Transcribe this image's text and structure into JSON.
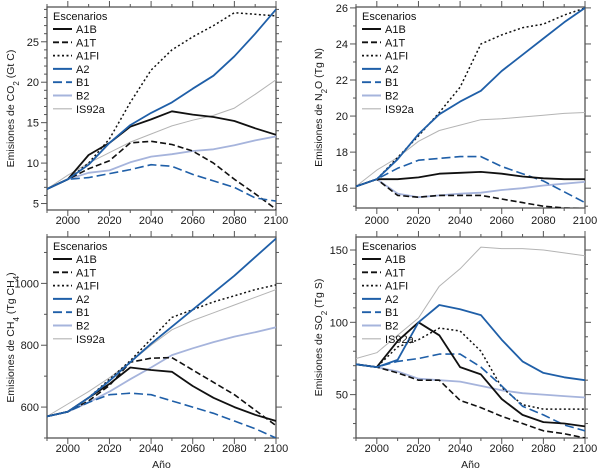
{
  "colors": {
    "A1B": "#111111",
    "A1T": "#111111",
    "A1FI": "#111111",
    "A2": "#1f5fa8",
    "B1": "#1f5fa8",
    "B2": "#a6b4dc",
    "IS92a": "#b4b4b4",
    "axis": "#555555"
  },
  "chart_data": [
    {
      "type": "line",
      "id": "co2",
      "title": "",
      "xlabel": "",
      "ylabel_parts": [
        "Emisiones de CO",
        "2",
        " (Gt C)"
      ],
      "xlim": [
        1990,
        2100
      ],
      "ylim": [
        4.2,
        29.3
      ],
      "xticks": [
        2000,
        2020,
        2040,
        2060,
        2080,
        2100
      ],
      "yticks": [
        5,
        10,
        15,
        20,
        25
      ],
      "legend": {
        "title": "Escenarios",
        "placement": "top-left"
      },
      "grid": false,
      "x": [
        1990,
        2000,
        2010,
        2020,
        2030,
        2040,
        2050,
        2060,
        2070,
        2080,
        2090,
        2100
      ],
      "series": [
        {
          "name": "A1B",
          "style": "solid",
          "values": [
            6.8,
            8.0,
            11.0,
            12.5,
            14.5,
            15.4,
            16.4,
            16.0,
            15.7,
            15.2,
            14.3,
            13.5
          ]
        },
        {
          "name": "A1T",
          "style": "dashed",
          "values": [
            6.8,
            8.0,
            9.3,
            10.3,
            12.5,
            12.7,
            12.3,
            11.5,
            10.0,
            8.0,
            6.2,
            4.3
          ]
        },
        {
          "name": "A1FI",
          "style": "dotted",
          "values": [
            6.8,
            8.0,
            10.0,
            13.0,
            17.5,
            21.5,
            24.0,
            25.6,
            27.0,
            28.6,
            28.4,
            28.2
          ]
        },
        {
          "name": "A2",
          "style": "solid",
          "values": [
            6.8,
            8.0,
            9.8,
            12.5,
            14.7,
            16.2,
            17.5,
            19.2,
            20.8,
            23.2,
            26.0,
            29.0
          ]
        },
        {
          "name": "B1",
          "style": "longdash",
          "values": [
            6.8,
            8.0,
            8.2,
            8.7,
            9.2,
            9.8,
            9.6,
            8.6,
            7.8,
            7.0,
            5.7,
            5.3
          ]
        },
        {
          "name": "B2",
          "style": "solid",
          "values": [
            6.8,
            8.0,
            8.8,
            9.1,
            10.1,
            10.8,
            11.1,
            11.5,
            11.7,
            12.2,
            12.8,
            13.3
          ]
        },
        {
          "name": "IS92a",
          "style": "thin",
          "values": [
            6.8,
            8.5,
            10.0,
            11.3,
            12.6,
            13.6,
            14.6,
            15.3,
            15.9,
            16.8,
            18.5,
            20.3
          ]
        }
      ]
    },
    {
      "type": "line",
      "id": "n2o",
      "title": "",
      "xlabel": "",
      "ylabel_parts": [
        "Emisiones de N",
        "2",
        "O (Tg N)"
      ],
      "xlim": [
        1990,
        2100
      ],
      "ylim": [
        14.9,
        26.05
      ],
      "xticks": [
        2000,
        2020,
        2040,
        2060,
        2080,
        2100
      ],
      "yticks": [
        16,
        18,
        20,
        22,
        24,
        26
      ],
      "legend": {
        "title": "Escenarios",
        "placement": "top-left"
      },
      "grid": false,
      "x": [
        1990,
        2000,
        2010,
        2020,
        2030,
        2040,
        2050,
        2060,
        2070,
        2080,
        2090,
        2100
      ],
      "series": [
        {
          "name": "A1B",
          "style": "solid",
          "values": [
            16.1,
            16.5,
            16.5,
            16.6,
            16.8,
            16.85,
            16.9,
            16.8,
            16.65,
            16.55,
            16.5,
            16.5
          ]
        },
        {
          "name": "A1T",
          "style": "dashed",
          "values": [
            16.1,
            16.5,
            15.6,
            15.5,
            15.6,
            15.6,
            15.6,
            15.4,
            15.2,
            15.0,
            14.9,
            14.85
          ]
        },
        {
          "name": "A1FI",
          "style": "dotted",
          "values": [
            16.1,
            16.5,
            17.7,
            18.9,
            20.2,
            21.6,
            24.0,
            24.5,
            24.9,
            25.1,
            25.6,
            26.0
          ]
        },
        {
          "name": "A2",
          "style": "solid",
          "values": [
            16.1,
            16.5,
            17.6,
            19.0,
            20.1,
            20.8,
            21.4,
            22.5,
            23.4,
            24.3,
            25.2,
            26.0
          ]
        },
        {
          "name": "B1",
          "style": "longdash",
          "values": [
            16.1,
            16.5,
            17.1,
            17.55,
            17.65,
            17.75,
            17.75,
            17.2,
            16.8,
            16.4,
            15.8,
            15.2
          ]
        },
        {
          "name": "B2",
          "style": "solid",
          "values": [
            16.1,
            16.5,
            15.7,
            15.5,
            15.6,
            15.7,
            15.75,
            15.9,
            16.0,
            16.15,
            16.25,
            16.35
          ]
        },
        {
          "name": "IS92a",
          "style": "thin",
          "values": [
            16.1,
            17.0,
            17.7,
            18.6,
            19.2,
            19.5,
            19.8,
            19.85,
            19.95,
            20.05,
            20.15,
            20.2
          ]
        }
      ]
    },
    {
      "type": "line",
      "id": "ch4",
      "title": "",
      "xlabel": "Año",
      "ylabel_parts": [
        "Emisiones de CH",
        "4",
        " (Tg CH",
        "4",
        ")"
      ],
      "xlim": [
        1990,
        2100
      ],
      "ylim": [
        500,
        1150
      ],
      "xticks": [
        2000,
        2020,
        2040,
        2060,
        2080,
        2100
      ],
      "yticks": [
        600,
        800,
        1000
      ],
      "legend": {
        "title": "Escenarios",
        "placement": "top-left"
      },
      "grid": false,
      "x": [
        1990,
        2000,
        2010,
        2020,
        2030,
        2040,
        2050,
        2060,
        2070,
        2080,
        2090,
        2100
      ],
      "series": [
        {
          "name": "A1B",
          "style": "solid",
          "values": [
            570,
            585,
            630,
            675,
            728,
            720,
            714,
            668,
            630,
            600,
            575,
            555
          ]
        },
        {
          "name": "A1T",
          "style": "dashed",
          "values": [
            570,
            585,
            620,
            670,
            745,
            758,
            760,
            720,
            680,
            640,
            590,
            540
          ]
        },
        {
          "name": "A1FI",
          "style": "dotted",
          "values": [
            570,
            585,
            630,
            690,
            750,
            820,
            890,
            915,
            940,
            960,
            980,
            995
          ]
        },
        {
          "name": "A2",
          "style": "solid",
          "values": [
            570,
            585,
            630,
            685,
            745,
            805,
            860,
            915,
            970,
            1025,
            1085,
            1145
          ]
        },
        {
          "name": "B1",
          "style": "longdash",
          "values": [
            570,
            585,
            615,
            640,
            645,
            640,
            620,
            600,
            580,
            555,
            530,
            500
          ]
        },
        {
          "name": "B2",
          "style": "solid",
          "values": [
            570,
            585,
            615,
            650,
            690,
            728,
            768,
            790,
            810,
            828,
            842,
            858
          ]
        },
        {
          "name": "IS92a",
          "style": "thin",
          "values": [
            570,
            610,
            650,
            695,
            745,
            800,
            850,
            880,
            905,
            930,
            955,
            980
          ]
        }
      ]
    },
    {
      "type": "line",
      "id": "so2",
      "title": "",
      "xlabel": "Año",
      "ylabel_parts": [
        "Emisiones de SO",
        "2",
        " (Tg S)"
      ],
      "xlim": [
        1990,
        2100
      ],
      "ylim": [
        20,
        159
      ],
      "xticks": [
        2000,
        2020,
        2040,
        2060,
        2080,
        2100
      ],
      "yticks": [
        50,
        100,
        150
      ],
      "legend": {
        "title": "Escenarios",
        "placement": "top-left"
      },
      "grid": false,
      "x": [
        1990,
        2000,
        2010,
        2020,
        2030,
        2040,
        2050,
        2060,
        2070,
        2080,
        2090,
        2100
      ],
      "series": [
        {
          "name": "A1B",
          "style": "solid",
          "values": [
            71,
            69,
            87,
            100,
            91,
            69,
            64,
            47,
            36,
            31,
            30,
            28
          ]
        },
        {
          "name": "A1T",
          "style": "dashed",
          "values": [
            71,
            69,
            65,
            60,
            60,
            46,
            41,
            35,
            30,
            25,
            23,
            20
          ]
        },
        {
          "name": "A1FI",
          "style": "dotted",
          "values": [
            71,
            69,
            83,
            88,
            96,
            94,
            80,
            55,
            43,
            40,
            40,
            40
          ]
        },
        {
          "name": "A2",
          "style": "solid",
          "values": [
            71,
            69,
            74,
            100,
            112,
            109,
            105,
            88,
            73,
            65,
            62,
            60
          ]
        },
        {
          "name": "B1",
          "style": "longdash",
          "values": [
            71,
            69,
            73,
            75,
            78,
            78,
            69,
            56,
            42,
            36,
            29,
            25
          ]
        },
        {
          "name": "B2",
          "style": "solid",
          "values": [
            71,
            69,
            66,
            61,
            60,
            59,
            56,
            53,
            51,
            50,
            49,
            48
          ]
        },
        {
          "name": "IS92a",
          "style": "thin",
          "values": [
            75,
            79,
            91,
            103,
            125,
            137,
            152,
            151,
            151,
            150,
            148,
            146
          ]
        }
      ]
    }
  ]
}
